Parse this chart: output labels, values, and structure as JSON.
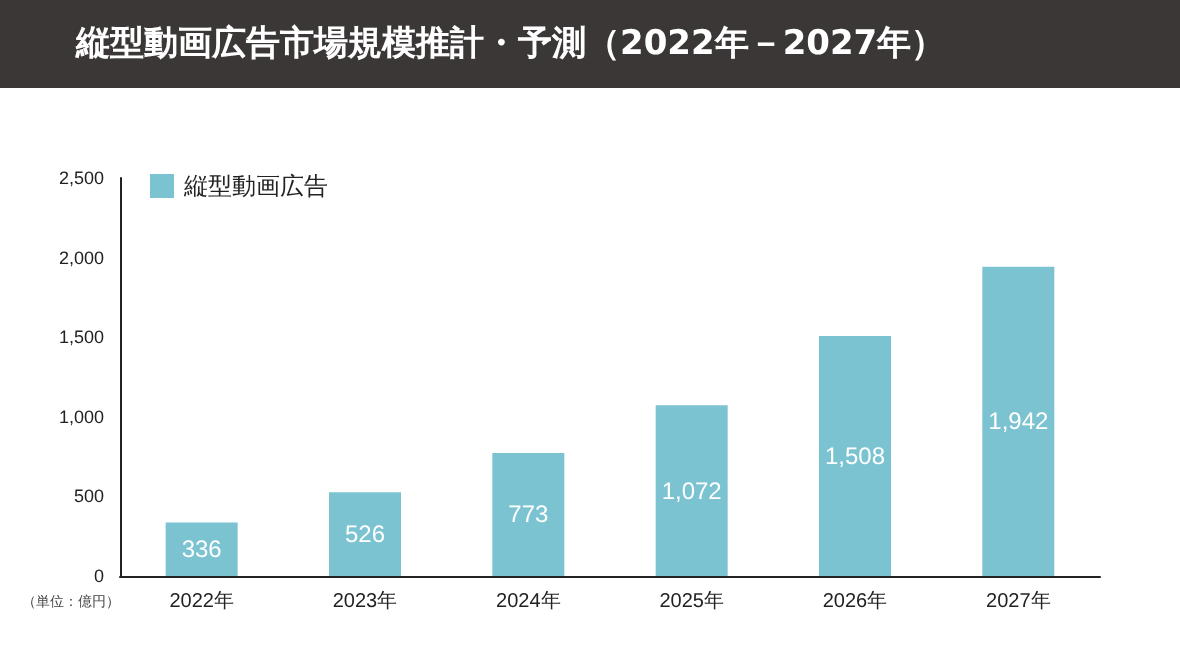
{
  "chart_data": {
    "type": "bar",
    "title": "縦型動画広告市場規模推計・予測（2022年－2027年）",
    "ylabel": "（単位：億円）",
    "categories": [
      "2022年",
      "2023年",
      "2024年",
      "2025年",
      "2026年",
      "2027年"
    ],
    "series": [
      {
        "name": "縦型動画広告",
        "color": "#7cc3d2",
        "values": [
          336,
          526,
          773,
          1072,
          1508,
          1942
        ],
        "value_labels": [
          "336",
          "526",
          "773",
          "1,072",
          "1,508",
          "1,942"
        ]
      }
    ],
    "ylim": [
      0,
      2500
    ],
    "yticks": [
      0,
      500,
      {
        "value": 1000,
        "label": "1,000"
      },
      {
        "value": 1500,
        "label": "1,500"
      },
      {
        "value": 2000,
        "label": "2,000"
      },
      {
        "value": 2500,
        "label": "2,500"
      }
    ],
    "grid": false,
    "legend": "top left"
  }
}
